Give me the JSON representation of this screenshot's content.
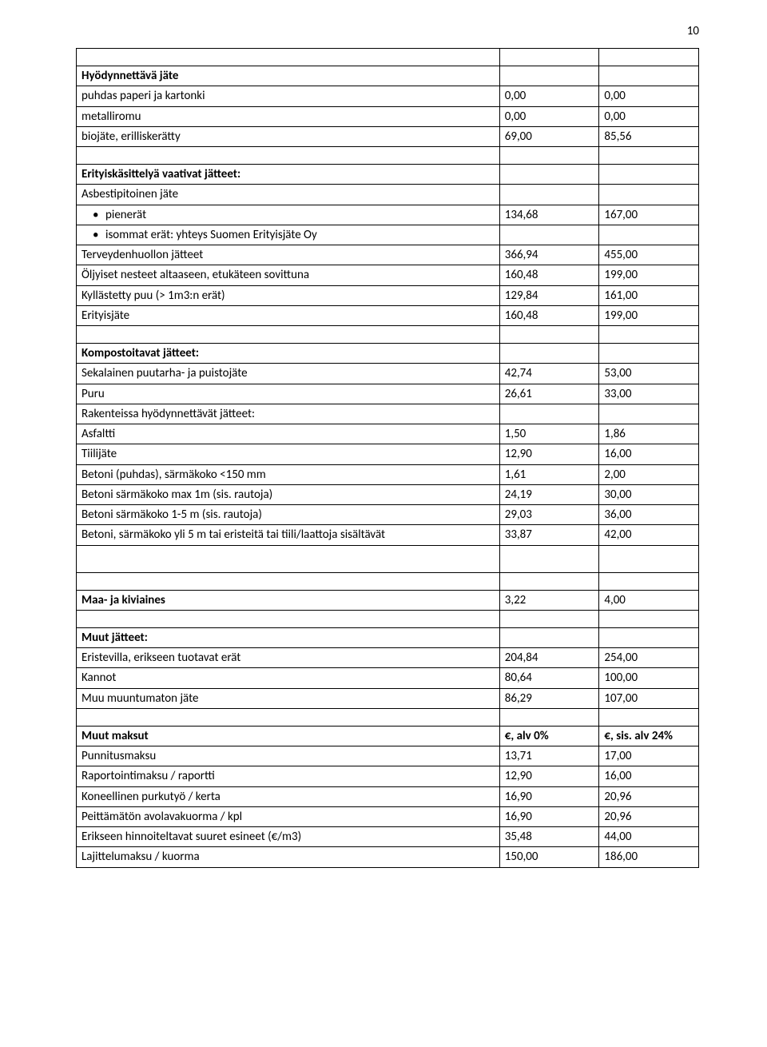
{
  "page_number": "10",
  "rows": [
    {
      "c1": "",
      "c2": "",
      "c3": ""
    },
    {
      "c1": "Hyödynnettävä jäte",
      "bold": true
    },
    {
      "c1": "puhdas paperi ja kartonki",
      "c2": "0,00",
      "c3": "0,00"
    },
    {
      "c1": "metalliromu",
      "c2": "0,00",
      "c3": "0,00"
    },
    {
      "c1": "biojäte, erilliskerätty",
      "c2": "69,00",
      "c3": "85,56"
    },
    {
      "c1": "",
      "c2": "",
      "c3": ""
    },
    {
      "c1": "Erityiskäsittelyä vaativat jätteet:",
      "bold": true
    },
    {
      "c1": "Asbestipitoinen jäte"
    },
    {
      "c1": "pienerät",
      "c2": "134,68",
      "c3": "167,00",
      "bullet": true
    },
    {
      "c1": "isommat erät: yhteys Suomen Erityisjäte Oy",
      "bullet": true
    },
    {
      "c1": "Terveydenhuollon jätteet",
      "c2": "366,94",
      "c3": "455,00"
    },
    {
      "c1": "Öljyiset nesteet altaaseen, etukäteen sovittuna",
      "c2": "160,48",
      "c3": "199,00"
    },
    {
      "c1": "Kyllästetty puu (> 1m3:n erät)",
      "c2": "129,84",
      "c3": "161,00"
    },
    {
      "c1": "Erityisjäte",
      "c2": "160,48",
      "c3": "199,00"
    },
    {
      "c1": "",
      "c2": "",
      "c3": ""
    },
    {
      "c1": "Kompostoitavat jätteet:",
      "bold": true
    },
    {
      "c1": "Sekalainen puutarha- ja puistojäte",
      "c2": "42,74",
      "c3": "53,00"
    },
    {
      "c1": "Puru",
      "c2": "26,61",
      "c3": "33,00"
    },
    {
      "c1": "Rakenteissa hyödynnettävät jätteet:"
    },
    {
      "c1": "Asfaltti",
      "c2": "1,50",
      "c3": "1,86"
    },
    {
      "c1": "Tiilijäte",
      "c2": "12,90",
      "c3": "16,00"
    },
    {
      "c1": "Betoni (puhdas), särmäkoko  <150 mm",
      "c2": "1,61",
      "c3": "2,00"
    },
    {
      "c1": "Betoni särmäkoko max 1m (sis. rautoja)",
      "c2": "24,19",
      "c3": "30,00"
    },
    {
      "c1": "Betoni särmäkoko 1-5 m (sis. rautoja)",
      "c2": "29,03",
      "c3": "36,00"
    },
    {
      "c1": "Betoni, särmäkoko yli 5 m tai eristeitä tai tiili/laattoja sisältävät",
      "c2": "33,87",
      "c3": "42,00"
    },
    {
      "c1": "",
      "c2": "",
      "c3": "",
      "tall": true
    },
    {
      "c1": "",
      "c2": "",
      "c3": ""
    },
    {
      "c1": "Maa- ja kiviaines",
      "bold": true,
      "c2": "3,22",
      "c3": "4,00"
    },
    {
      "c1": "",
      "c2": "",
      "c3": ""
    },
    {
      "c1": "Muut jätteet:",
      "bold": true
    },
    {
      "c1": "Eristevilla, erikseen tuotavat erät",
      "c2": "204,84",
      "c3": "254,00"
    },
    {
      "c1": "Kannot",
      "c2": "80,64",
      "c3": "100,00"
    },
    {
      "c1": "Muu muuntumaton jäte",
      "c2": "86,29",
      "c3": "107,00"
    },
    {
      "c1": "",
      "c2": "",
      "c3": ""
    },
    {
      "c1": "Muut maksut",
      "bold": true,
      "c2": "€, alv 0%",
      "c3": "€, sis. alv 24%",
      "boldRow": true
    },
    {
      "c1": "Punnitusmaksu",
      "c2": "13,71",
      "c3": "17,00"
    },
    {
      "c1": "Raportointimaksu / raportti",
      "c2": "12,90",
      "c3": "16,00"
    },
    {
      "c1": "Koneellinen purkutyö / kerta",
      "c2": "16,90",
      "c3": "20,96"
    },
    {
      "c1": "Peittämätön avolavakuorma / kpl",
      "c2": "16,90",
      "c3": "20,96"
    },
    {
      "c1": "Erikseen hinnoiteltavat suuret esineet (€/m3)",
      "c2": "35,48",
      "c3": "44,00"
    },
    {
      "c1": "Lajittelumaksu / kuorma",
      "c2": "150,00",
      "c3": "186,00"
    }
  ]
}
